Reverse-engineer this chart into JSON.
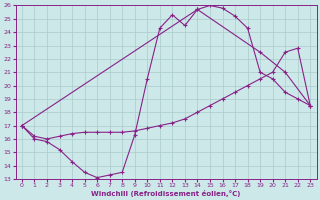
{
  "xlabel": "Windchill (Refroidissement éolien,°C)",
  "xlim": [
    -0.5,
    23.5
  ],
  "ylim": [
    13,
    26
  ],
  "xticks": [
    0,
    1,
    2,
    3,
    4,
    5,
    6,
    7,
    8,
    9,
    10,
    11,
    12,
    13,
    14,
    15,
    16,
    17,
    18,
    19,
    20,
    21,
    22,
    23
  ],
  "yticks": [
    13,
    14,
    15,
    16,
    17,
    18,
    19,
    20,
    21,
    22,
    23,
    24,
    25,
    26
  ],
  "bg_color": "#cce8e8",
  "grid_color": "#aacccc",
  "line_color": "#882288",
  "line1_x": [
    0,
    1,
    2,
    3,
    4,
    5,
    6,
    7,
    8,
    9,
    10,
    11,
    12,
    13,
    14,
    15,
    16,
    17,
    18,
    19,
    20,
    21,
    22,
    23
  ],
  "line1_y": [
    17.0,
    16.0,
    15.8,
    15.2,
    14.3,
    13.5,
    13.1,
    13.3,
    13.5,
    16.3,
    20.5,
    24.3,
    25.3,
    24.5,
    25.7,
    26.0,
    25.8,
    25.2,
    24.3,
    21.0,
    20.5,
    19.5,
    19.0,
    18.5
  ],
  "line2_x": [
    0,
    1,
    2,
    3,
    4,
    5,
    6,
    7,
    8,
    9,
    10,
    11,
    12,
    13,
    14,
    15,
    16,
    17,
    18,
    19,
    20,
    21,
    22,
    23
  ],
  "line2_y": [
    17.0,
    16.2,
    16.0,
    16.2,
    16.4,
    16.5,
    16.5,
    16.5,
    16.5,
    16.6,
    16.8,
    17.0,
    17.2,
    17.5,
    18.0,
    18.5,
    19.0,
    19.5,
    20.0,
    20.5,
    21.0,
    22.5,
    22.8,
    18.5
  ],
  "line3_x": [
    0,
    14,
    19,
    21,
    23
  ],
  "line3_y": [
    17.0,
    25.7,
    22.5,
    21.0,
    18.5
  ]
}
